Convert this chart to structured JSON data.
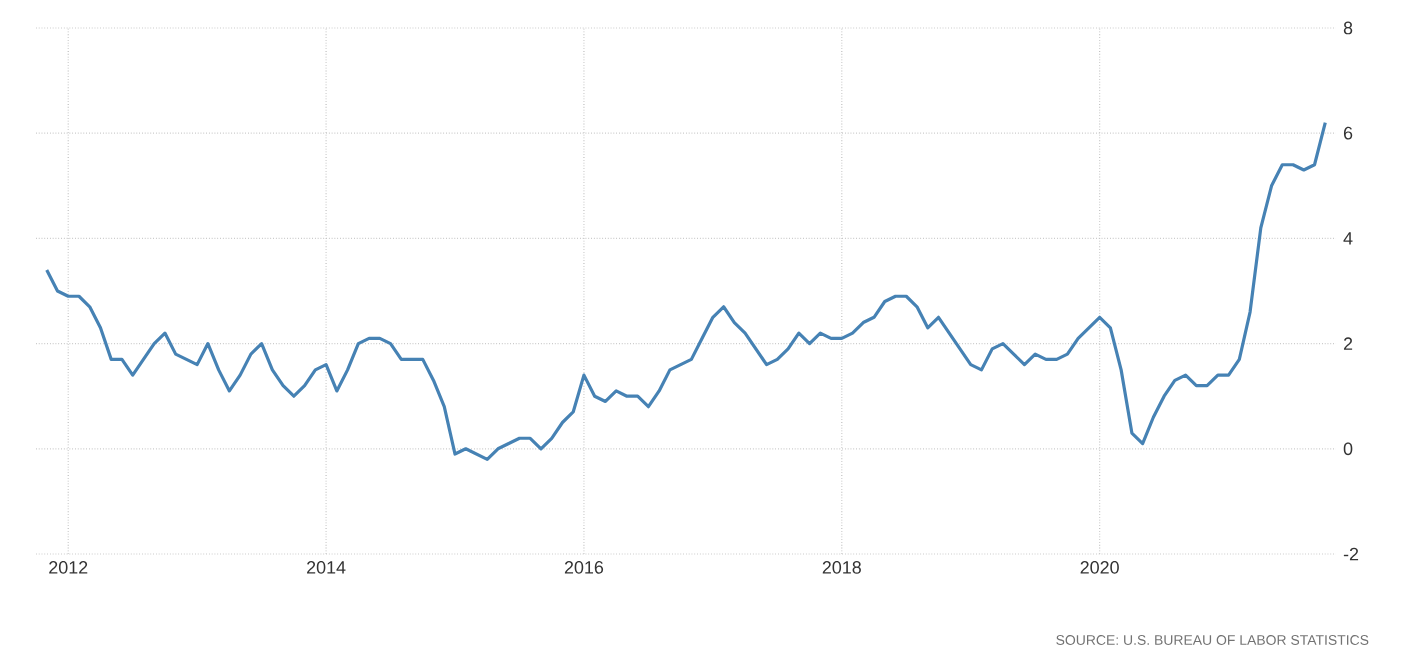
{
  "chart_data": {
    "type": "line",
    "xlim": [
      "2011-10",
      "2021-11"
    ],
    "ylim": [
      -2,
      8
    ],
    "xticks": [
      "2012",
      "2014",
      "2016",
      "2018",
      "2020"
    ],
    "yticks": [
      -2,
      0,
      2,
      4,
      6,
      8
    ],
    "grid": true,
    "line_style": "solid",
    "marker": "none",
    "annotations": [
      "SOURCE: U.S. BUREAU OF LABOR STATISTICS"
    ],
    "series": [
      {
        "color": "#4682b4",
        "x": [
          "2011-11",
          "2011-12",
          "2012-01",
          "2012-02",
          "2012-03",
          "2012-04",
          "2012-05",
          "2012-06",
          "2012-07",
          "2012-08",
          "2012-09",
          "2012-10",
          "2012-11",
          "2012-12",
          "2013-01",
          "2013-02",
          "2013-03",
          "2013-04",
          "2013-05",
          "2013-06",
          "2013-07",
          "2013-08",
          "2013-09",
          "2013-10",
          "2013-11",
          "2013-12",
          "2014-01",
          "2014-02",
          "2014-03",
          "2014-04",
          "2014-05",
          "2014-06",
          "2014-07",
          "2014-08",
          "2014-09",
          "2014-10",
          "2014-11",
          "2014-12",
          "2015-01",
          "2015-02",
          "2015-03",
          "2015-04",
          "2015-05",
          "2015-06",
          "2015-07",
          "2015-08",
          "2015-09",
          "2015-10",
          "2015-11",
          "2015-12",
          "2016-01",
          "2016-02",
          "2016-03",
          "2016-04",
          "2016-05",
          "2016-06",
          "2016-07",
          "2016-08",
          "2016-09",
          "2016-10",
          "2016-11",
          "2016-12",
          "2017-01",
          "2017-02",
          "2017-03",
          "2017-04",
          "2017-05",
          "2017-06",
          "2017-07",
          "2017-08",
          "2017-09",
          "2017-10",
          "2017-11",
          "2017-12",
          "2018-01",
          "2018-02",
          "2018-03",
          "2018-04",
          "2018-05",
          "2018-06",
          "2018-07",
          "2018-08",
          "2018-09",
          "2018-10",
          "2018-11",
          "2018-12",
          "2019-01",
          "2019-02",
          "2019-03",
          "2019-04",
          "2019-05",
          "2019-06",
          "2019-07",
          "2019-08",
          "2019-09",
          "2019-10",
          "2019-11",
          "2019-12",
          "2020-01",
          "2020-02",
          "2020-03",
          "2020-04",
          "2020-05",
          "2020-06",
          "2020-07",
          "2020-08",
          "2020-09",
          "2020-10",
          "2020-11",
          "2020-12",
          "2021-01",
          "2021-02",
          "2021-03",
          "2021-04",
          "2021-05",
          "2021-06",
          "2021-07",
          "2021-08",
          "2021-09",
          "2021-10"
        ],
        "values": [
          3.4,
          3.0,
          2.9,
          2.9,
          2.7,
          2.3,
          1.7,
          1.7,
          1.4,
          1.7,
          2.0,
          2.2,
          1.8,
          1.7,
          1.6,
          2.0,
          1.5,
          1.1,
          1.4,
          1.8,
          2.0,
          1.5,
          1.2,
          1.0,
          1.2,
          1.5,
          1.6,
          1.1,
          1.5,
          2.0,
          2.1,
          2.1,
          2.0,
          1.7,
          1.7,
          1.7,
          1.3,
          0.8,
          -0.1,
          0.0,
          -0.1,
          -0.2,
          0.0,
          0.1,
          0.2,
          0.2,
          0.0,
          0.2,
          0.5,
          0.7,
          1.4,
          1.0,
          0.9,
          1.1,
          1.0,
          1.0,
          0.8,
          1.1,
          1.5,
          1.6,
          1.7,
          2.1,
          2.5,
          2.7,
          2.4,
          2.2,
          1.9,
          1.6,
          1.7,
          1.9,
          2.2,
          2.0,
          2.2,
          2.1,
          2.1,
          2.2,
          2.4,
          2.5,
          2.8,
          2.9,
          2.9,
          2.7,
          2.3,
          2.5,
          2.2,
          1.9,
          1.6,
          1.5,
          1.9,
          2.0,
          1.8,
          1.6,
          1.8,
          1.7,
          1.7,
          1.8,
          2.1,
          2.3,
          2.5,
          2.3,
          1.5,
          0.3,
          0.1,
          0.6,
          1.0,
          1.3,
          1.4,
          1.2,
          1.2,
          1.4,
          1.4,
          1.7,
          2.6,
          4.2,
          5.0,
          5.4,
          5.4,
          5.3,
          5.4,
          6.2
        ]
      }
    ]
  }
}
